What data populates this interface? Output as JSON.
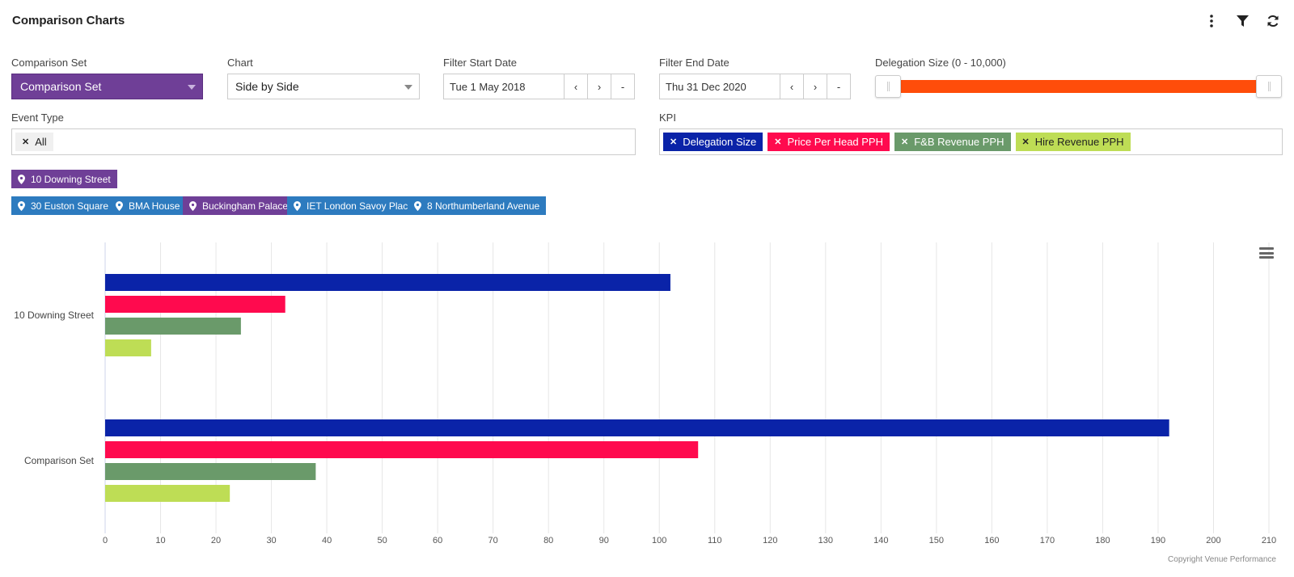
{
  "header": {
    "title": "Comparison Charts"
  },
  "filters": {
    "comparison_set": {
      "label": "Comparison Set",
      "value": "Comparison Set"
    },
    "chart": {
      "label": "Chart",
      "value": "Side by Side"
    },
    "start_date": {
      "label": "Filter Start Date",
      "value": "Tue 1 May 2018",
      "prev": "‹",
      "next": "›",
      "clear": "-"
    },
    "end_date": {
      "label": "Filter End Date",
      "value": "Thu 31 Dec 2020",
      "prev": "‹",
      "next": "›",
      "clear": "-"
    },
    "delegation": {
      "label": "Delegation Size (0 - 10,000)"
    },
    "event_type": {
      "label": "Event Type",
      "tags": [
        {
          "label": "All"
        }
      ]
    },
    "kpi": {
      "label": "KPI",
      "tags": [
        {
          "label": "Delegation Size",
          "color": "#0a23a8"
        },
        {
          "label": "Price Per Head PPH",
          "color": "#ff0a4e"
        },
        {
          "label": "F&B Revenue PPH",
          "color": "#6a9a6a"
        },
        {
          "label": "Hire Revenue PPH",
          "color": "#bedd55"
        }
      ]
    }
  },
  "venues": {
    "primary": {
      "label": "10 Downing Street",
      "color": "#6f3f97"
    },
    "others": [
      {
        "label": "30 Euston Square",
        "color": "#2d7bbf"
      },
      {
        "label": "BMA House",
        "color": "#2d7bbf"
      },
      {
        "label": "Buckingham Palace",
        "color": "#6f3f97"
      },
      {
        "label": "IET London Savoy Place",
        "color": "#2d7bbf"
      },
      {
        "label": "8 Northumberland Avenue",
        "color": "#2d7bbf"
      }
    ]
  },
  "chart_data": {
    "type": "bar",
    "orientation": "horizontal",
    "categories": [
      "10 Downing Street",
      "Comparison Set"
    ],
    "series": [
      {
        "name": "Delegation Size",
        "color": "#0a23a8",
        "values": [
          102,
          192
        ]
      },
      {
        "name": "Price Per Head PPH",
        "color": "#ff0a4e",
        "values": [
          32.5,
          107
        ]
      },
      {
        "name": "F&B Revenue PPH",
        "color": "#6a9a6a",
        "values": [
          24.5,
          38
        ]
      },
      {
        "name": "Hire Revenue PPH",
        "color": "#bedd55",
        "values": [
          8.3,
          22.5
        ]
      }
    ],
    "xlim": [
      0,
      210
    ],
    "xticks": [
      "0",
      "10",
      "20",
      "30",
      "40",
      "50",
      "60",
      "70",
      "80",
      "90",
      "100",
      "110",
      "120",
      "130",
      "140",
      "150",
      "160",
      "170",
      "180",
      "190",
      "200",
      "210"
    ],
    "grid": true
  },
  "footer": {
    "copyright": "Copyright Venue Performance"
  }
}
